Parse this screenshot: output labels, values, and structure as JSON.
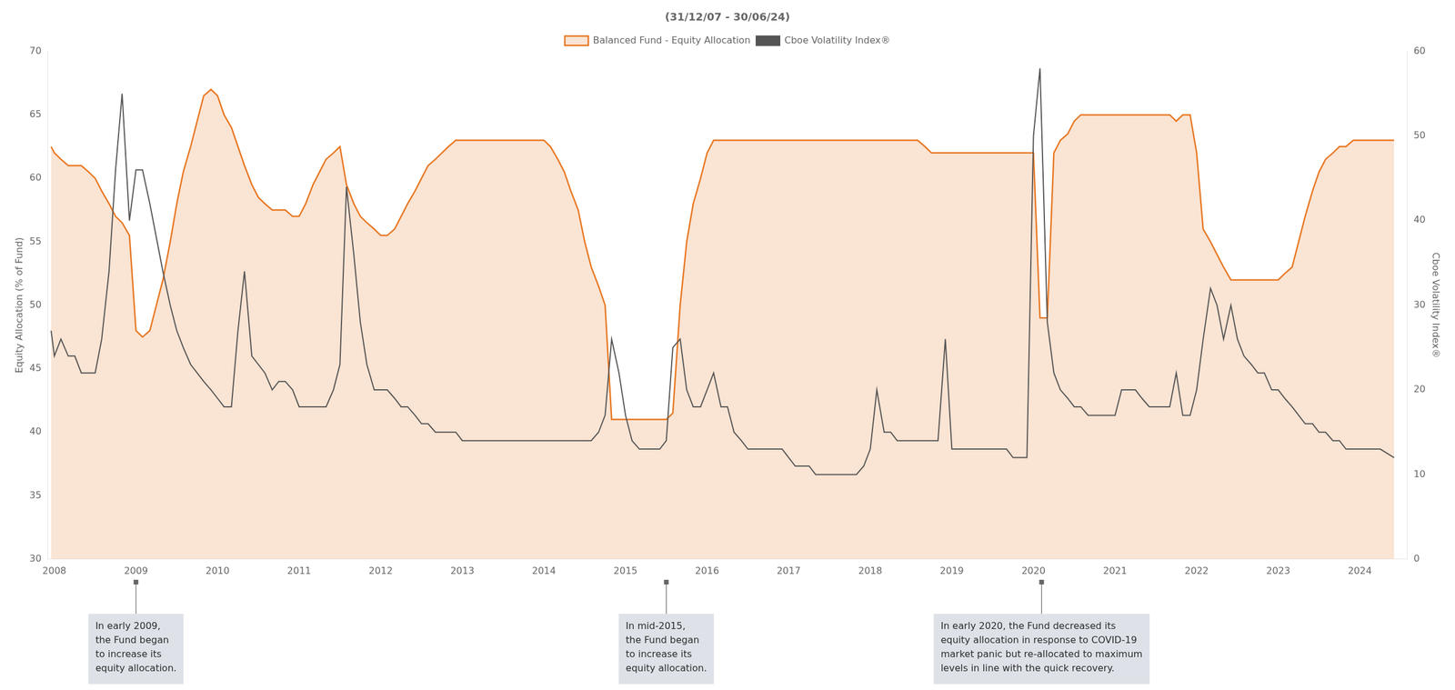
{
  "chart_data": {
    "type": "line",
    "title": "(31/12/07 - 30/06/24)",
    "ylabel": "Equity Allocation (% of Fund)",
    "y2label": "Cboe Volatility Index®",
    "x": [
      2007.96,
      2008.0,
      2008.08,
      2008.17,
      2008.25,
      2008.33,
      2008.42,
      2008.5,
      2008.58,
      2008.67,
      2008.75,
      2008.83,
      2008.92,
      2009.0,
      2009.08,
      2009.17,
      2009.25,
      2009.33,
      2009.42,
      2009.5,
      2009.58,
      2009.67,
      2009.75,
      2009.83,
      2009.92,
      2010.0,
      2010.08,
      2010.17,
      2010.25,
      2010.33,
      2010.42,
      2010.5,
      2010.58,
      2010.67,
      2010.75,
      2010.83,
      2010.92,
      2011.0,
      2011.08,
      2011.17,
      2011.25,
      2011.33,
      2011.42,
      2011.5,
      2011.58,
      2011.67,
      2011.75,
      2011.83,
      2011.92,
      2012.0,
      2012.08,
      2012.17,
      2012.25,
      2012.33,
      2012.42,
      2012.5,
      2012.58,
      2012.67,
      2012.75,
      2012.83,
      2012.92,
      2013.0,
      2013.08,
      2013.17,
      2013.25,
      2013.33,
      2013.42,
      2013.5,
      2013.58,
      2013.67,
      2013.75,
      2013.83,
      2013.92,
      2014.0,
      2014.08,
      2014.17,
      2014.25,
      2014.33,
      2014.42,
      2014.5,
      2014.58,
      2014.67,
      2014.75,
      2014.83,
      2014.92,
      2015.0,
      2015.08,
      2015.17,
      2015.25,
      2015.33,
      2015.42,
      2015.5,
      2015.58,
      2015.67,
      2015.75,
      2015.83,
      2015.92,
      2016.0,
      2016.08,
      2016.17,
      2016.25,
      2016.33,
      2016.42,
      2016.5,
      2016.58,
      2016.67,
      2016.75,
      2016.83,
      2016.92,
      2017.0,
      2017.08,
      2017.17,
      2017.25,
      2017.33,
      2017.42,
      2017.5,
      2017.58,
      2017.67,
      2017.75,
      2017.83,
      2017.92,
      2018.0,
      2018.08,
      2018.17,
      2018.25,
      2018.33,
      2018.42,
      2018.5,
      2018.58,
      2018.67,
      2018.75,
      2018.83,
      2018.92,
      2019.0,
      2019.08,
      2019.17,
      2019.25,
      2019.33,
      2019.42,
      2019.5,
      2019.58,
      2019.67,
      2019.75,
      2019.83,
      2019.92,
      2020.0,
      2020.08,
      2020.17,
      2020.25,
      2020.33,
      2020.42,
      2020.5,
      2020.58,
      2020.67,
      2020.75,
      2020.83,
      2020.92,
      2021.0,
      2021.08,
      2021.17,
      2021.25,
      2021.33,
      2021.42,
      2021.5,
      2021.58,
      2021.67,
      2021.75,
      2021.83,
      2021.92,
      2022.0,
      2022.08,
      2022.17,
      2022.25,
      2022.33,
      2022.42,
      2022.5,
      2022.58,
      2022.67,
      2022.75,
      2022.83,
      2022.92,
      2023.0,
      2023.08,
      2023.17,
      2023.25,
      2023.33,
      2023.42,
      2023.5,
      2023.58,
      2023.67,
      2023.75,
      2023.83,
      2023.92,
      2024.0,
      2024.08,
      2024.17,
      2024.25,
      2024.42
    ],
    "series": [
      {
        "name": "Balanced Fund - Equity Allocation",
        "color": "#E87722",
        "type": "area",
        "values": [
          62.5,
          62.0,
          61.5,
          61.0,
          61.0,
          61.0,
          60.5,
          60.0,
          59.0,
          58.0,
          57.0,
          56.5,
          55.5,
          48.0,
          47.5,
          48.0,
          50.0,
          52.0,
          55.0,
          58.0,
          60.5,
          62.5,
          64.5,
          66.5,
          67.0,
          66.5,
          65.0,
          64.0,
          62.5,
          61.0,
          59.5,
          58.5,
          58.0,
          57.5,
          57.5,
          57.5,
          57.0,
          57.0,
          58.0,
          59.5,
          60.5,
          61.5,
          62.0,
          62.5,
          59.5,
          58.0,
          57.0,
          56.5,
          56.0,
          55.5,
          55.5,
          56.0,
          57.0,
          58.0,
          59.0,
          60.0,
          61.0,
          61.5,
          62.0,
          62.5,
          63.0,
          63.0,
          63.0,
          63.0,
          63.0,
          63.0,
          63.0,
          63.0,
          63.0,
          63.0,
          63.0,
          63.0,
          63.0,
          63.0,
          62.5,
          61.5,
          60.5,
          59.0,
          57.5,
          55.0,
          53.0,
          51.5,
          50.0,
          41.0,
          41.0,
          41.0,
          41.0,
          41.0,
          41.0,
          41.0,
          41.0,
          41.0,
          41.5,
          50.0,
          55.0,
          58.0,
          60.0,
          62.0,
          63.0,
          63.0,
          63.0,
          63.0,
          63.0,
          63.0,
          63.0,
          63.0,
          63.0,
          63.0,
          63.0,
          63.0,
          63.0,
          63.0,
          63.0,
          63.0,
          63.0,
          63.0,
          63.0,
          63.0,
          63.0,
          63.0,
          63.0,
          63.0,
          63.0,
          63.0,
          63.0,
          63.0,
          63.0,
          63.0,
          63.0,
          62.5,
          62.0,
          62.0,
          62.0,
          62.0,
          62.0,
          62.0,
          62.0,
          62.0,
          62.0,
          62.0,
          62.0,
          62.0,
          62.0,
          62.0,
          62.0,
          62.0,
          49.0,
          49.0,
          62.0,
          63.0,
          63.5,
          64.5,
          65.0,
          65.0,
          65.0,
          65.0,
          65.0,
          65.0,
          65.0,
          65.0,
          65.0,
          65.0,
          65.0,
          65.0,
          65.0,
          65.0,
          64.5,
          65.0,
          65.0,
          62.0,
          56.0,
          55.0,
          54.0,
          53.0,
          52.0,
          52.0,
          52.0,
          52.0,
          52.0,
          52.0,
          52.0,
          52.0,
          52.5,
          53.0,
          55.0,
          57.0,
          59.0,
          60.5,
          61.5,
          62.0,
          62.5,
          62.5,
          63.0,
          63.0,
          63.0,
          63.0,
          63.0,
          63.0
        ]
      },
      {
        "name": "Cboe Volatility Index®",
        "color": "#555555",
        "type": "line",
        "axis": "y2",
        "values": [
          27,
          24,
          26,
          24,
          24,
          22,
          22,
          22,
          26,
          34,
          46,
          55,
          40,
          46,
          46,
          42,
          38,
          34,
          30,
          27,
          25,
          23,
          22,
          21,
          20,
          19,
          18,
          18,
          27,
          34,
          24,
          23,
          22,
          20,
          21,
          21,
          20,
          18,
          18,
          18,
          18,
          18,
          20,
          23,
          44,
          36,
          28,
          23,
          20,
          20,
          20,
          19,
          18,
          18,
          17,
          16,
          16,
          15,
          15,
          15,
          15,
          14,
          14,
          14,
          14,
          14,
          14,
          14,
          14,
          14,
          14,
          14,
          14,
          14,
          14,
          14,
          14,
          14,
          14,
          14,
          14,
          15,
          17,
          26,
          22,
          17,
          14,
          13,
          13,
          13,
          13,
          14,
          25,
          26,
          20,
          18,
          18,
          20,
          22,
          18,
          18,
          15,
          14,
          13,
          13,
          13,
          13,
          13,
          13,
          12,
          11,
          11,
          11,
          10,
          10,
          10,
          10,
          10,
          10,
          10,
          11,
          13,
          20,
          15,
          15,
          14,
          14,
          14,
          14,
          14,
          14,
          14,
          26,
          13,
          13,
          13,
          13,
          13,
          13,
          13,
          13,
          13,
          12,
          12,
          12,
          50,
          58,
          28,
          22,
          20,
          19,
          18,
          18,
          17,
          17,
          17,
          17,
          17,
          20,
          20,
          20,
          19,
          18,
          18,
          18,
          18,
          22,
          17,
          17,
          20,
          26,
          32,
          30,
          26,
          30,
          26,
          24,
          23,
          22,
          22,
          20,
          20,
          19,
          18,
          17,
          16,
          16,
          15,
          15,
          14,
          14,
          13,
          13,
          13,
          13,
          13,
          13,
          12
        ]
      }
    ],
    "xlim": [
      2007.92,
      2024.58
    ],
    "xticks": [
      2008,
      2009,
      2010,
      2011,
      2012,
      2013,
      2014,
      2015,
      2016,
      2017,
      2018,
      2019,
      2020,
      2021,
      2022,
      2023,
      2024
    ],
    "ylim": [
      30,
      70
    ],
    "yticks": [
      30,
      35,
      40,
      45,
      50,
      55,
      60,
      65,
      70
    ],
    "y2lim": [
      0,
      60
    ],
    "y2ticks": [
      0,
      10,
      20,
      30,
      40,
      50,
      60
    ],
    "grid": false,
    "legend": "top",
    "annotations": [
      {
        "x": 2009.0,
        "text": "In early 2009,\nthe Fund began\nto increase its\nequity allocation."
      },
      {
        "x": 2015.5,
        "text": "In mid-2015,\nthe Fund began\nto increase its\nequity allocation."
      },
      {
        "x": 2020.1,
        "text": "In early 2020, the Fund decreased its\nequity allocation in response to COVID-19\nmarket panic but re-allocated to maximum\nlevels in line with the quick recovery."
      }
    ]
  }
}
